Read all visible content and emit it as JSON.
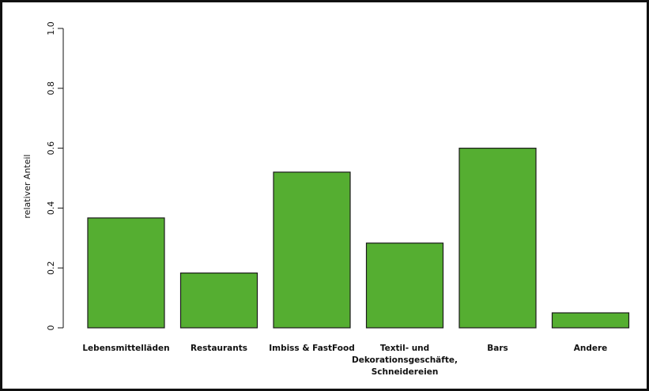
{
  "chart_data": {
    "type": "bar",
    "title": "",
    "xlabel": "",
    "ylabel": "relativer Anteil",
    "categories": [
      "Lebensmittelläden",
      "Restaurants",
      "Imbiss & FastFood",
      "Textil- und Dekorationsgeschäfte, Schneidereien",
      "Bars",
      "Andere"
    ],
    "category_label_lines": [
      [
        "Lebensmittelläden"
      ],
      [
        "Restaurants"
      ],
      [
        "Imbiss & FastFood"
      ],
      [
        "Textil- und",
        "Dekorationsgeschäfte,",
        "Schneidereien"
      ],
      [
        "Bars"
      ],
      [
        "Andere"
      ]
    ],
    "values": [
      0.367,
      0.183,
      0.52,
      0.283,
      0.6,
      0.05
    ],
    "ylim": [
      0,
      1.0
    ],
    "yticks": [
      0,
      0.2,
      0.4,
      0.6,
      0.8,
      1.0
    ],
    "ytick_labels": [
      "0",
      "0.2",
      "0.4",
      "0.6",
      "0.8",
      "1.0"
    ],
    "grid": false,
    "legend": "none",
    "bar_color": "#55ae31",
    "bar_edge_color": "#1a1a1a"
  }
}
